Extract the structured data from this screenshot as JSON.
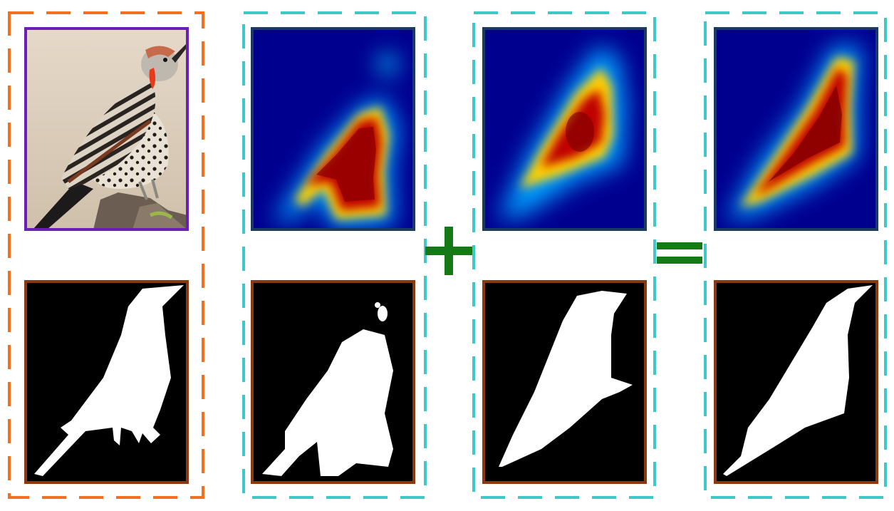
{
  "figure": {
    "columns": [
      {
        "id": "input",
        "role": "input image and ground truth"
      },
      {
        "id": "map-a",
        "role": "attention map A and mask A"
      },
      {
        "id": "map-b",
        "role": "attention map B and mask B"
      },
      {
        "id": "map-sum",
        "role": "fused attention map and fused mask"
      }
    ],
    "operators": [
      "+",
      "="
    ]
  },
  "colors": {
    "input_group_border": "#f37021",
    "map_group_border": "#3ec8c8",
    "photo_frame": "#6a1fb5",
    "heatmap_frame": "#1a3a60",
    "mask_frame": "#8b3a10",
    "operator": "#157a15",
    "heat_background": "#00008f",
    "mask_background": "#000000",
    "mask_foreground": "#ffffff"
  },
  "icons": {
    "photo": "bird-photo-icon",
    "plus": "plus-operator-icon",
    "equals": "equals-operator-icon"
  }
}
